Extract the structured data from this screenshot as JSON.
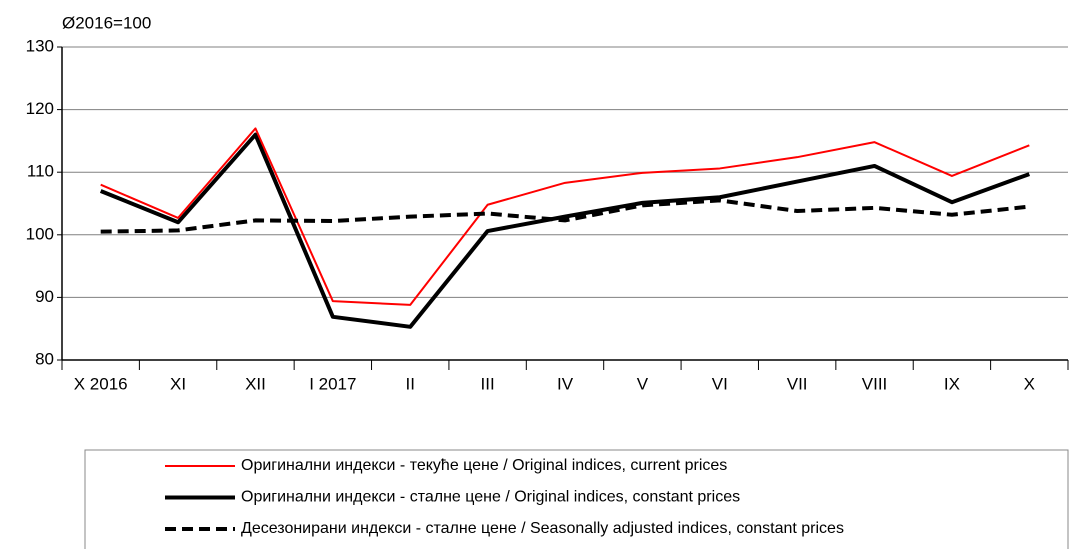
{
  "chart_data": {
    "type": "line",
    "y_label": "Ø2016=100",
    "categories": [
      "X 2016",
      "XI",
      "XII",
      "I  2017",
      "II",
      "III",
      "IV",
      "V",
      "VI",
      "VII",
      "VIII",
      "IX",
      "X"
    ],
    "series": [
      {
        "name": "Оригинални индекси - текуће цене / Original indices, current prices",
        "color": "#ff0000",
        "style": "thin",
        "values": [
          108,
          102.7,
          117,
          89.4,
          88.8,
          104.8,
          108.3,
          109.9,
          110.6,
          112.4,
          114.8,
          109.4,
          114.3
        ]
      },
      {
        "name": "Оригинални индекси - сталне цене / Original indices, constant prices",
        "color": "#000000",
        "style": "thick",
        "values": [
          107,
          102,
          116,
          86.9,
          85.3,
          100.6,
          102.9,
          105.1,
          106,
          108.5,
          111,
          105.2,
          109.7
        ]
      },
      {
        "name": "Десезонирани индекси - сталне цене / Seasonally adjusted indices, constant prices",
        "color": "#000000",
        "style": "dashed",
        "values": [
          100.5,
          100.7,
          102.3,
          102.2,
          102.9,
          103.4,
          102.3,
          104.7,
          105.5,
          103.8,
          104.3,
          103.2,
          104.5
        ]
      }
    ],
    "ylim": [
      80,
      130
    ],
    "yticks": [
      80,
      90,
      100,
      110,
      120,
      130
    ],
    "grid": true,
    "legend": "bottom"
  }
}
